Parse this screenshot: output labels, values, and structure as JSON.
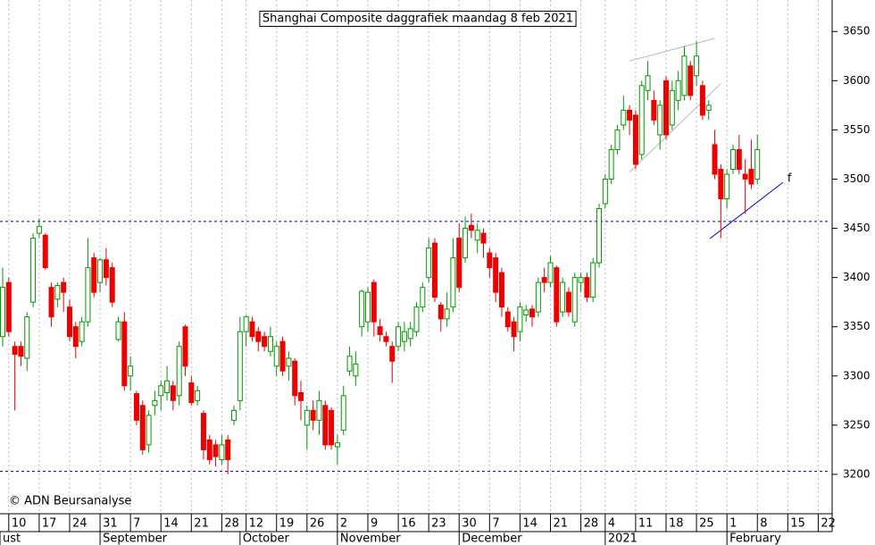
{
  "chart_data": {
    "type": "candlestick",
    "title": "Shanghai Composite daggrafiek maandag 8 feb 2021",
    "copyright": "© ADN Beursanalyse",
    "open": [
      3340,
      3395,
      3330,
      3330,
      3318,
      3375,
      3445,
      3443,
      3390,
      3378,
      3395,
      3370,
      3350,
      3335,
      3355,
      3420,
      3395,
      3418,
      3410,
      3337,
      3355,
      3300,
      3282,
      3270,
      3230,
      3270,
      3280,
      3283,
      3290,
      3280,
      3350,
      3293,
      3275,
      3262,
      3235,
      3230,
      3215,
      3235,
      3255,
      3275,
      3345,
      3355,
      3345,
      3340,
      3325,
      3310,
      3335,
      3310,
      3315,
      3283,
      3250,
      3265,
      3255,
      3270,
      3265,
      3228,
      3245,
      3305,
      3300,
      3350,
      3355,
      3395,
      3350,
      3340,
      3330,
      3330,
      3335,
      3338,
      3345,
      3370,
      3400,
      3435,
      3372,
      3358,
      3370,
      3440,
      3420,
      3453,
      3438,
      3445,
      3425,
      3420,
      3405,
      3365,
      3355,
      3345,
      3362,
      3368,
      3365,
      3400,
      3395,
      3410,
      3365,
      3385,
      3355,
      3395,
      3400,
      3380,
      3415,
      3475,
      3500,
      3530,
      3555,
      3570,
      3565,
      3525,
      3590,
      3580,
      3545,
      3600,
      3555,
      3580,
      3585,
      3615,
      3605,
      3595,
      3570,
      3535,
      3510,
      3480,
      3510,
      3530,
      3505,
      3510,
      3500
    ],
    "high": [
      3410,
      3400,
      3335,
      3335,
      3365,
      3445,
      3460,
      3445,
      3395,
      3395,
      3400,
      3378,
      3355,
      3360,
      3440,
      3425,
      3420,
      3430,
      3415,
      3360,
      3365,
      3320,
      3285,
      3275,
      3265,
      3285,
      3295,
      3310,
      3295,
      3335,
      3352,
      3300,
      3290,
      3265,
      3240,
      3235,
      3240,
      3240,
      3270,
      3360,
      3362,
      3360,
      3350,
      3345,
      3350,
      3335,
      3340,
      3325,
      3318,
      3295,
      3270,
      3275,
      3285,
      3275,
      3268,
      3240,
      3290,
      3330,
      3325,
      3388,
      3390,
      3398,
      3358,
      3345,
      3335,
      3355,
      3355,
      3355,
      3375,
      3395,
      3440,
      3440,
      3375,
      3385,
      3440,
      3455,
      3462,
      3465,
      3455,
      3450,
      3430,
      3425,
      3410,
      3370,
      3360,
      3375,
      3372,
      3372,
      3400,
      3410,
      3422,
      3412,
      3400,
      3390,
      3405,
      3405,
      3405,
      3420,
      3475,
      3505,
      3535,
      3555,
      3585,
      3575,
      3570,
      3600,
      3620,
      3590,
      3580,
      3605,
      3600,
      3610,
      3635,
      3620,
      3640,
      3600,
      3580,
      3550,
      3515,
      3510,
      3535,
      3545,
      3520,
      3540,
      3545
    ],
    "low": [
      3330,
      3340,
      3265,
      3310,
      3305,
      3370,
      3440,
      3408,
      3350,
      3370,
      3365,
      3335,
      3318,
      3330,
      3350,
      3380,
      3385,
      3392,
      3370,
      3335,
      3285,
      3285,
      3250,
      3220,
      3222,
      3260,
      3265,
      3275,
      3265,
      3270,
      3300,
      3270,
      3270,
      3215,
      3210,
      3208,
      3210,
      3200,
      3250,
      3265,
      3330,
      3335,
      3325,
      3325,
      3320,
      3300,
      3300,
      3295,
      3270,
      3255,
      3225,
      3245,
      3240,
      3225,
      3225,
      3210,
      3240,
      3300,
      3290,
      3340,
      3345,
      3340,
      3335,
      3330,
      3293,
      3325,
      3325,
      3330,
      3340,
      3365,
      3395,
      3375,
      3345,
      3350,
      3365,
      3385,
      3415,
      3440,
      3425,
      3420,
      3400,
      3375,
      3360,
      3345,
      3325,
      3335,
      3355,
      3350,
      3360,
      3385,
      3390,
      3350,
      3360,
      3360,
      3350,
      3385,
      3375,
      3375,
      3410,
      3470,
      3495,
      3525,
      3550,
      3545,
      3510,
      3520,
      3580,
      3555,
      3530,
      3540,
      3550,
      3570,
      3580,
      3580,
      3595,
      3560,
      3560,
      3500,
      3440,
      3470,
      3505,
      3505,
      3465,
      3490,
      3495
    ],
    "close": [
      3390,
      3345,
      3322,
      3320,
      3360,
      3440,
      3452,
      3410,
      3360,
      3392,
      3385,
      3340,
      3330,
      3355,
      3410,
      3385,
      3418,
      3400,
      3375,
      3355,
      3290,
      3310,
      3255,
      3225,
      3260,
      3275,
      3290,
      3295,
      3275,
      3330,
      3310,
      3273,
      3285,
      3225,
      3215,
      3218,
      3230,
      3215,
      3265,
      3345,
      3360,
      3340,
      3335,
      3330,
      3340,
      3330,
      3305,
      3318,
      3280,
      3275,
      3265,
      3255,
      3275,
      3230,
      3230,
      3232,
      3280,
      3320,
      3312,
      3386,
      3385,
      3355,
      3342,
      3335,
      3315,
      3350,
      3345,
      3348,
      3370,
      3390,
      3430,
      3380,
      3358,
      3368,
      3420,
      3390,
      3450,
      3448,
      3448,
      3435,
      3410,
      3385,
      3370,
      3350,
      3340,
      3370,
      3367,
      3360,
      3395,
      3395,
      3415,
      3355,
      3395,
      3365,
      3400,
      3400,
      3380,
      3415,
      3470,
      3500,
      3530,
      3550,
      3570,
      3560,
      3515,
      3595,
      3605,
      3560,
      3575,
      3545,
      3590,
      3600,
      3625,
      3585,
      3625,
      3565,
      3575,
      3505,
      3480,
      3505,
      3530,
      3510,
      3500,
      3495,
      3530
    ],
    "up_color": "#009900",
    "down_color": "#ee0000",
    "xlim": [
      -0.44,
      135.7
    ],
    "ylim": [
      3160,
      3682
    ],
    "yticks": [
      3200,
      3250,
      3300,
      3350,
      3400,
      3450,
      3500,
      3550,
      3600,
      3650
    ],
    "xticks": [
      {
        "value": 1,
        "label": "10"
      },
      {
        "value": 6,
        "label": "17"
      },
      {
        "value": 11,
        "label": "24"
      },
      {
        "value": 16,
        "label": "31"
      },
      {
        "value": 21,
        "label": "7"
      },
      {
        "value": 26,
        "label": "14"
      },
      {
        "value": 31,
        "label": "21"
      },
      {
        "value": 36,
        "label": "28"
      },
      {
        "value": 40,
        "label": "12"
      },
      {
        "value": 45,
        "label": "19"
      },
      {
        "value": 50,
        "label": "26"
      },
      {
        "value": 55,
        "label": "2"
      },
      {
        "value": 60,
        "label": "9"
      },
      {
        "value": 65,
        "label": "16"
      },
      {
        "value": 70,
        "label": "23"
      },
      {
        "value": 75,
        "label": "30"
      },
      {
        "value": 80,
        "label": "7"
      },
      {
        "value": 85,
        "label": "14"
      },
      {
        "value": 90,
        "label": "21"
      },
      {
        "value": 95,
        "label": "28"
      },
      {
        "value": 99,
        "label": "4"
      },
      {
        "value": 104,
        "label": "11"
      },
      {
        "value": 109,
        "label": "18"
      },
      {
        "value": 114,
        "label": "25"
      },
      {
        "value": 119,
        "label": "1"
      },
      {
        "value": 124,
        "label": "8"
      },
      {
        "value": 129,
        "label": "15"
      },
      {
        "value": 134,
        "label": "22"
      }
    ],
    "months": [
      {
        "value": -0.44,
        "label": "ust"
      },
      {
        "value": 16,
        "label": "September"
      },
      {
        "value": 39,
        "label": "October"
      },
      {
        "value": 55,
        "label": "November"
      },
      {
        "value": 75,
        "label": "December"
      },
      {
        "value": 99,
        "label": "2021"
      },
      {
        "value": 119,
        "label": "February"
      }
    ],
    "levels": [
      {
        "value": 3457,
        "color": "#000080"
      },
      {
        "value": 3203,
        "color": "#000080"
      }
    ],
    "trendlines": [
      {
        "points": [
          [
            116.2,
            3439.5
          ],
          [
            128.2,
            3496.7
          ]
        ],
        "color": "#0000cc",
        "label": "f"
      },
      {
        "points": [
          [
            103,
            3620
          ],
          [
            117,
            3643
          ]
        ],
        "color": "#bbbbbb"
      },
      {
        "points": [
          [
            103,
            3507
          ],
          [
            118,
            3597
          ]
        ],
        "color": "#bbbbbb"
      }
    ],
    "grid": true
  }
}
